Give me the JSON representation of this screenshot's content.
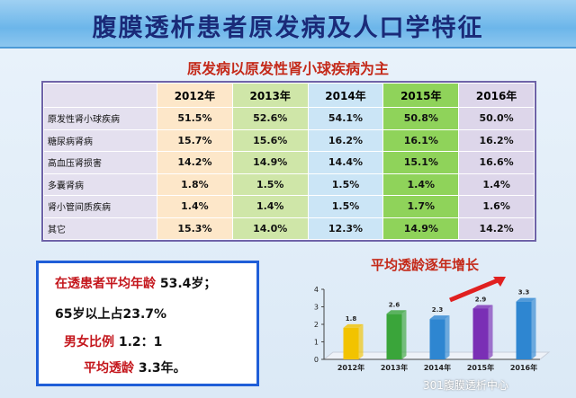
{
  "header": {
    "title": "腹膜透析患者原发病及人口学特征"
  },
  "table": {
    "caption": "原发病以原发性肾小球疾病为主",
    "columns": [
      "2012年",
      "2013年",
      "2014年",
      "2015年",
      "2016年"
    ],
    "rows": [
      {
        "label": "原发性肾小球疾病",
        "values": [
          "51.5%",
          "52.6%",
          "54.1%",
          "50.8%",
          "50.0%"
        ]
      },
      {
        "label": "糖尿病肾病",
        "values": [
          "15.7%",
          "15.6%",
          "16.2%",
          "16.1%",
          "16.2%"
        ]
      },
      {
        "label": "高血压肾损害",
        "values": [
          "14.2%",
          "14.9%",
          "14.4%",
          "15.1%",
          "16.6%"
        ]
      },
      {
        "label": "多囊肾病",
        "values": [
          "1.8%",
          "1.5%",
          "1.5%",
          "1.4%",
          "1.4%"
        ]
      },
      {
        "label": "肾小管间质疾病",
        "values": [
          "1.4%",
          "1.4%",
          "1.5%",
          "1.7%",
          "1.6%"
        ]
      },
      {
        "label": "其它",
        "values": [
          "15.3%",
          "14.0%",
          "12.3%",
          "14.9%",
          "14.2%"
        ]
      }
    ]
  },
  "info": {
    "avg_age_label": "在透患者平均年龄",
    "avg_age_value": "53.4岁；",
    "over65_text": "65岁以上占23.7%",
    "sex_label": "男女比例",
    "sex_value": "1.2：1",
    "dialysis_label": "平均透龄",
    "dialysis_value": "3.3年。"
  },
  "chart_data": {
    "type": "bar",
    "title": "平均透龄逐年增长",
    "categories": [
      "2012年",
      "2013年",
      "2014年",
      "2015年",
      "2016年"
    ],
    "values": [
      1.8,
      2.6,
      2.3,
      2.9,
      3.3
    ],
    "data_labels": [
      "1.8",
      "2.6",
      "2.3",
      "2.9",
      "3.3"
    ],
    "ylim": [
      0,
      4
    ],
    "yticks": [
      "0",
      "1",
      "2",
      "3",
      "4"
    ],
    "grid": false,
    "legend": "none",
    "colors": [
      "#f2c300",
      "#3aa53a",
      "#2e86d1",
      "#7a2fb5",
      "#2e86d1"
    ],
    "trend_arrow_color": "#e02020"
  },
  "watermark": "301腹膜透析中心"
}
